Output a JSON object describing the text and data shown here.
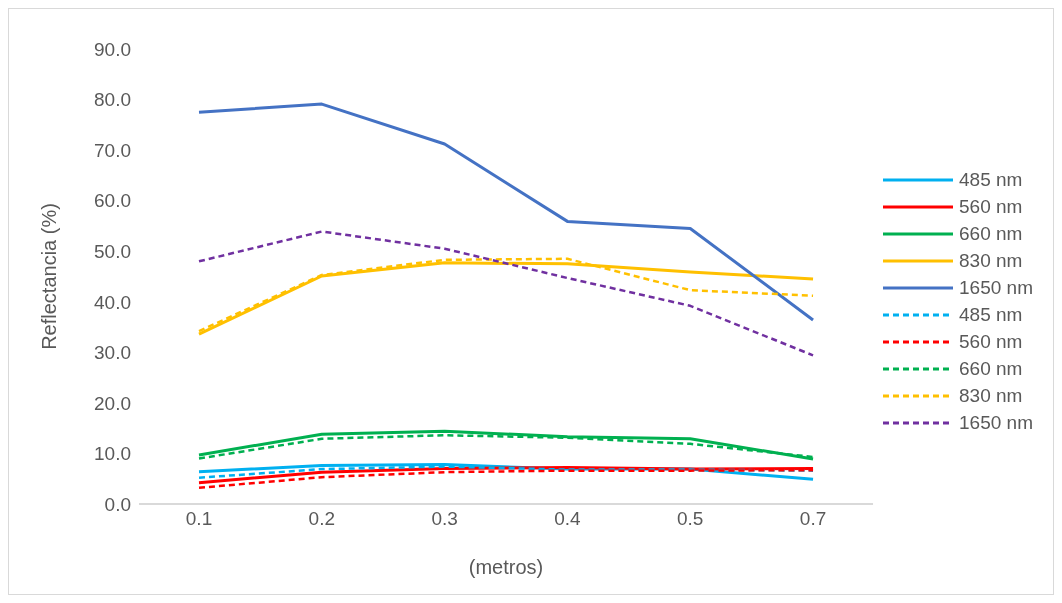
{
  "chart_data": {
    "type": "line",
    "xlabel": "(metros)",
    "ylabel": "Reflectancia (%)",
    "categories": [
      "0.1",
      "0.2",
      "0.3",
      "0.4",
      "0.5",
      "0.7"
    ],
    "ylim": [
      0,
      90
    ],
    "yticks": [
      {
        "value": 0,
        "label": "0.0"
      },
      {
        "value": 10,
        "label": "10.0"
      },
      {
        "value": 20,
        "label": "20.0"
      },
      {
        "value": 30,
        "label": "30.0"
      },
      {
        "value": 40,
        "label": "40.0"
      },
      {
        "value": 50,
        "label": "50.0"
      },
      {
        "value": 60,
        "label": "60.0"
      },
      {
        "value": 70,
        "label": "70.0"
      },
      {
        "value": 80,
        "label": "80.0"
      },
      {
        "value": 90,
        "label": "90.0"
      }
    ],
    "grid": false,
    "legend": "right",
    "marker": "none",
    "series": [
      {
        "name": "485 nm",
        "color": "#00b0f0",
        "line_style": "solid",
        "values": [
          6.4,
          7.6,
          7.8,
          6.9,
          6.9,
          4.9
        ]
      },
      {
        "name": "560 nm",
        "color": "#ff0000",
        "line_style": "solid",
        "values": [
          4.2,
          6.3,
          7.0,
          7.2,
          6.9,
          7.0
        ]
      },
      {
        "name": "660 nm",
        "color": "#00b050",
        "line_style": "solid",
        "values": [
          9.7,
          13.8,
          14.4,
          13.3,
          12.9,
          8.9
        ]
      },
      {
        "name": "830 nm",
        "color": "#ffc000",
        "line_style": "solid",
        "values": [
          33.6,
          45.1,
          47.7,
          47.5,
          45.9,
          44.5
        ]
      },
      {
        "name": "1650 nm",
        "color": "#4472c4",
        "line_style": "solid",
        "values": [
          77.5,
          79.1,
          71.2,
          55.9,
          54.5,
          36.4
        ]
      },
      {
        "name": "485 nm",
        "color": "#00b0f0",
        "line_style": "dashed",
        "values": [
          5.2,
          6.9,
          7.4,
          6.8,
          6.8,
          6.6
        ]
      },
      {
        "name": "560 nm",
        "color": "#ff0000",
        "line_style": "dashed",
        "values": [
          3.2,
          5.3,
          6.3,
          6.6,
          6.6,
          6.7
        ]
      },
      {
        "name": "660 nm",
        "color": "#00b050",
        "line_style": "dashed",
        "values": [
          9.0,
          12.9,
          13.6,
          13.1,
          11.9,
          9.3
        ]
      },
      {
        "name": "830 nm",
        "color": "#ffc000",
        "line_style": "dashed",
        "values": [
          34.2,
          45.3,
          48.3,
          48.5,
          42.3,
          41.2
        ]
      },
      {
        "name": "1650 nm",
        "color": "#7030a0",
        "line_style": "dashed",
        "values": [
          48.0,
          53.9,
          50.5,
          44.7,
          39.2,
          29.4
        ]
      }
    ]
  }
}
